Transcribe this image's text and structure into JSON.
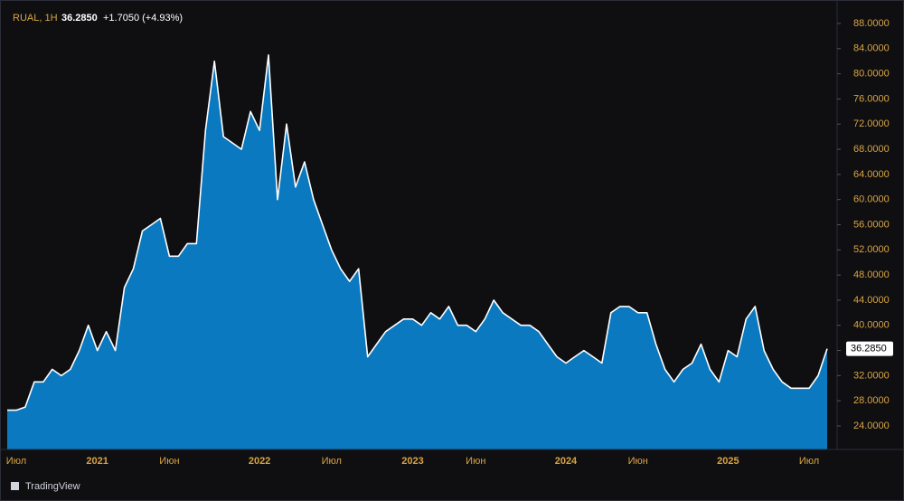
{
  "chart_data": {
    "type": "area",
    "symbol": "RUAL, 1H",
    "last_value_label": "36.2850",
    "change": "+1.7050 (+4.93%)",
    "brand": "TradingView",
    "color": "#0b79c0",
    "line_color": "#ffffff",
    "categories": [
      null,
      "Июл",
      null,
      null,
      null,
      null,
      null,
      null,
      null,
      null,
      "2021",
      null,
      null,
      null,
      null,
      null,
      null,
      null,
      "Июн",
      null,
      null,
      null,
      null,
      null,
      null,
      null,
      null,
      null,
      "2022",
      null,
      null,
      null,
      null,
      null,
      null,
      null,
      "Июл",
      null,
      null,
      null,
      null,
      null,
      null,
      null,
      null,
      "2023",
      null,
      null,
      null,
      null,
      null,
      null,
      "Июн",
      null,
      null,
      null,
      null,
      null,
      null,
      null,
      null,
      null,
      "2024",
      null,
      null,
      null,
      null,
      null,
      null,
      null,
      "Июн",
      null,
      null,
      null,
      null,
      null,
      null,
      null,
      null,
      null,
      "2025",
      null,
      null,
      null,
      null,
      null,
      null,
      null,
      null,
      "Июл",
      null,
      null
    ],
    "values": [
      26.5,
      26.5,
      27,
      31,
      31,
      33,
      32,
      33,
      36,
      40,
      36,
      39,
      36,
      46,
      49,
      55,
      56,
      57,
      51,
      51,
      53,
      53,
      71,
      82,
      70,
      69,
      68,
      74,
      71,
      83,
      60,
      72,
      62,
      66,
      60,
      56,
      52,
      49,
      47,
      49,
      35,
      37,
      39,
      40,
      41,
      41,
      40,
      42,
      41,
      43,
      40,
      40,
      39,
      41,
      44,
      42,
      41,
      40,
      40,
      39,
      37,
      35,
      34,
      35,
      36,
      35,
      34,
      42,
      43,
      43,
      42,
      42,
      37,
      33,
      31,
      33,
      34,
      37,
      33,
      31,
      36,
      35,
      41,
      43,
      36,
      33,
      31,
      30,
      30,
      30,
      32,
      36.285
    ],
    "ylim": [
      20.26,
      90.3
    ],
    "yticks": [
      {
        "value": 24,
        "label": "24.0000"
      },
      {
        "value": 28,
        "label": "28.0000"
      },
      {
        "value": 32,
        "label": "32.0000"
      },
      {
        "value": 36,
        "label": "36.0000"
      },
      {
        "value": 40,
        "label": "40.0000"
      },
      {
        "value": 44,
        "label": "44.0000"
      },
      {
        "value": 48,
        "label": "48.0000"
      },
      {
        "value": 52,
        "label": "52.0000"
      },
      {
        "value": 56,
        "label": "56.0000"
      },
      {
        "value": 60,
        "label": "60.0000"
      },
      {
        "value": 64,
        "label": "64.0000"
      },
      {
        "value": 68,
        "label": "68.0000"
      },
      {
        "value": 72,
        "label": "72.0000"
      },
      {
        "value": 76,
        "label": "76.0000"
      },
      {
        "value": 80,
        "label": "80.0000"
      },
      {
        "value": 84,
        "label": "84.0000"
      },
      {
        "value": 88,
        "label": "88.0000"
      }
    ],
    "grid": false
  }
}
